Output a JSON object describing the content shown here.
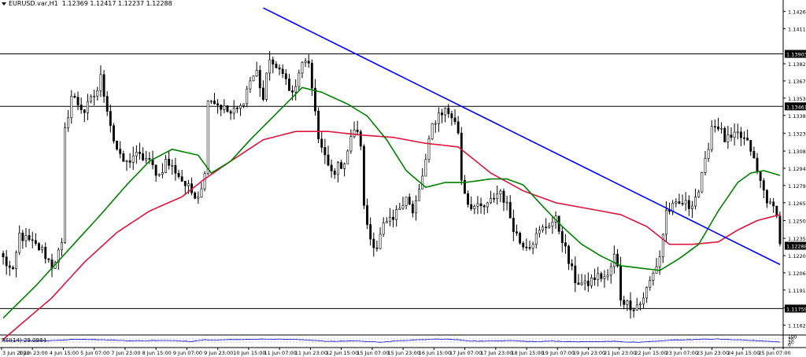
{
  "header": {
    "symbol": "EURUSD.var,H1",
    "ohlc": "1.12369 1.12417 1.12237 1.12288"
  },
  "chart_data": {
    "type": "candlestick",
    "y_ticks": [
      "1.14260",
      "1.14115",
      "1.13820",
      "1.13675",
      "1.13530",
      "1.13385",
      "1.13235",
      "1.13085",
      "1.12940",
      "1.12795",
      "1.12650",
      "1.12500",
      "1.12350",
      "1.12205",
      "1.12060",
      "1.11915",
      "1.11765",
      "1.11620"
    ],
    "y_range": [
      1.1155,
      1.1433
    ],
    "levels": [
      {
        "value": "1.13903",
        "type": "horizontal"
      },
      {
        "value": "1.13461",
        "type": "horizontal"
      },
      {
        "value": "1.11759",
        "type": "horizontal"
      }
    ],
    "current_price": "1.12288",
    "trendline": {
      "color": "#0000ff",
      "from": {
        "candle": 80,
        "price": 1.1429
      },
      "to": {
        "candle": 239,
        "price": 1.1213
      }
    },
    "x_labels": [
      "3 Jun 2020",
      "3 Jun 23:00",
      "4 Jun 15:00",
      "5 Jun 07:00",
      "7 Jun 23:00",
      "8 Jun 15:00",
      "9 Jun 07:00",
      "9 Jun 23:00",
      "10 Jun 15:00",
      "11 Jun 07:00",
      "11 Jun 23:00",
      "12 Jun 15:00",
      "15 Jun 07:00",
      "15 Jun 23:00",
      "16 Jun 15:00",
      "17 Jun 07:00",
      "17 Jun 23:00",
      "18 Jun 15:00",
      "19 Jun 07:00",
      "19 Jun 23:00",
      "21 Jun 23:00",
      "22 Jun 15:00",
      "23 Jun 07:00",
      "23 Jun 23:00",
      "24 Jun 15:00",
      "25 Jun 07:00"
    ],
    "candle_count": 240,
    "anchors": [
      [
        0,
        1.1218
      ],
      [
        3,
        1.1205
      ],
      [
        5,
        1.1238
      ],
      [
        8,
        1.1232
      ],
      [
        12,
        1.1225
      ],
      [
        15,
        1.1212
      ],
      [
        18,
        1.1228
      ],
      [
        19,
        1.1325
      ],
      [
        21,
        1.1355
      ],
      [
        25,
        1.1342
      ],
      [
        29,
        1.136
      ],
      [
        30,
        1.137
      ],
      [
        32,
        1.1345
      ],
      [
        34,
        1.1318
      ],
      [
        36,
        1.1302
      ],
      [
        38,
        1.1298
      ],
      [
        40,
        1.1305
      ],
      [
        44,
        1.1302
      ],
      [
        46,
        1.1295
      ],
      [
        48,
        1.1288
      ],
      [
        50,
        1.13
      ],
      [
        53,
        1.1292
      ],
      [
        56,
        1.128
      ],
      [
        58,
        1.1274
      ],
      [
        60,
        1.1272
      ],
      [
        62,
        1.1288
      ],
      [
        63,
        1.1355
      ],
      [
        66,
        1.1348
      ],
      [
        70,
        1.134
      ],
      [
        73,
        1.1345
      ],
      [
        76,
        1.1368
      ],
      [
        78,
        1.1375
      ],
      [
        80,
        1.1352
      ],
      [
        82,
        1.1388
      ],
      [
        84,
        1.1375
      ],
      [
        86,
        1.1378
      ],
      [
        88,
        1.1358
      ],
      [
        90,
        1.136
      ],
      [
        92,
        1.1385
      ],
      [
        94,
        1.1378
      ],
      [
        96,
        1.1345
      ],
      [
        97,
        1.1318
      ],
      [
        99,
        1.1302
      ],
      [
        101,
        1.129
      ],
      [
        103,
        1.1295
      ],
      [
        105,
        1.13
      ],
      [
        107,
        1.1318
      ],
      [
        108,
        1.1328
      ],
      [
        110,
        1.1315
      ],
      [
        111,
        1.126
      ],
      [
        113,
        1.1235
      ],
      [
        115,
        1.1228
      ],
      [
        117,
        1.1245
      ],
      [
        120,
        1.125
      ],
      [
        122,
        1.1262
      ],
      [
        124,
        1.1272
      ],
      [
        126,
        1.1255
      ],
      [
        128,
        1.1275
      ],
      [
        130,
        1.13
      ],
      [
        132,
        1.133
      ],
      [
        134,
        1.134
      ],
      [
        136,
        1.1343
      ],
      [
        138,
        1.1338
      ],
      [
        140,
        1.1325
      ],
      [
        141,
        1.1285
      ],
      [
        143,
        1.1265
      ],
      [
        146,
        1.126
      ],
      [
        149,
        1.1262
      ],
      [
        151,
        1.127
      ],
      [
        153,
        1.1275
      ],
      [
        155,
        1.1262
      ],
      [
        157,
        1.1245
      ],
      [
        159,
        1.1232
      ],
      [
        162,
        1.123
      ],
      [
        165,
        1.124
      ],
      [
        168,
        1.1248
      ],
      [
        170,
        1.125
      ],
      [
        172,
        1.1235
      ],
      [
        174,
        1.1215
      ],
      [
        176,
        1.12
      ],
      [
        179,
        1.1195
      ],
      [
        182,
        1.1202
      ],
      [
        184,
        1.1203
      ],
      [
        186,
        1.1202
      ],
      [
        188,
        1.122
      ],
      [
        189,
        1.121
      ],
      [
        190,
        1.1185
      ],
      [
        192,
        1.118
      ],
      [
        194,
        1.1178
      ],
      [
        196,
        1.118
      ],
      [
        198,
        1.1192
      ],
      [
        200,
        1.1205
      ],
      [
        202,
        1.122
      ],
      [
        204,
        1.1258
      ],
      [
        207,
        1.1262
      ],
      [
        209,
        1.1265
      ],
      [
        211,
        1.1262
      ],
      [
        214,
        1.1275
      ],
      [
        216,
        1.1298
      ],
      [
        218,
        1.133
      ],
      [
        220,
        1.133
      ],
      [
        222,
        1.1318
      ],
      [
        224,
        1.1318
      ],
      [
        226,
        1.1322
      ],
      [
        228,
        1.1318
      ],
      [
        230,
        1.131
      ],
      [
        232,
        1.129
      ],
      [
        234,
        1.1275
      ],
      [
        236,
        1.1262
      ],
      [
        238,
        1.1258
      ],
      [
        239,
        1.1229
      ]
    ],
    "moving_averages": [
      {
        "color": "#dc143c",
        "points": [
          [
            0,
            1.115
          ],
          [
            15,
            1.1185
          ],
          [
            25,
            1.1215
          ],
          [
            35,
            1.124
          ],
          [
            45,
            1.1258
          ],
          [
            55,
            1.127
          ],
          [
            62,
            1.1285
          ],
          [
            70,
            1.13
          ],
          [
            80,
            1.1318
          ],
          [
            90,
            1.1325
          ],
          [
            100,
            1.1325
          ],
          [
            110,
            1.1322
          ],
          [
            120,
            1.132
          ],
          [
            130,
            1.1315
          ],
          [
            140,
            1.1312
          ],
          [
            150,
            1.129
          ],
          [
            160,
            1.1275
          ],
          [
            170,
            1.1265
          ],
          [
            180,
            1.126
          ],
          [
            190,
            1.1255
          ],
          [
            198,
            1.1245
          ],
          [
            205,
            1.123
          ],
          [
            212,
            1.123
          ],
          [
            220,
            1.1232
          ],
          [
            226,
            1.1242
          ],
          [
            232,
            1.125
          ],
          [
            239,
            1.1255
          ]
        ]
      },
      {
        "color": "#008000",
        "points": [
          [
            0,
            1.1168
          ],
          [
            10,
            1.1195
          ],
          [
            20,
            1.1225
          ],
          [
            30,
            1.1255
          ],
          [
            38,
            1.128
          ],
          [
            45,
            1.13
          ],
          [
            52,
            1.131
          ],
          [
            60,
            1.1305
          ],
          [
            64,
            1.129
          ],
          [
            70,
            1.13
          ],
          [
            76,
            1.1318
          ],
          [
            84,
            1.134
          ],
          [
            92,
            1.1362
          ],
          [
            98,
            1.1358
          ],
          [
            106,
            1.1348
          ],
          [
            112,
            1.1338
          ],
          [
            118,
            1.1318
          ],
          [
            124,
            1.1292
          ],
          [
            130,
            1.1278
          ],
          [
            136,
            1.1282
          ],
          [
            142,
            1.1282
          ],
          [
            150,
            1.1285
          ],
          [
            155,
            1.1285
          ],
          [
            160,
            1.128
          ],
          [
            166,
            1.1262
          ],
          [
            172,
            1.1245
          ],
          [
            178,
            1.123
          ],
          [
            184,
            1.122
          ],
          [
            190,
            1.1212
          ],
          [
            196,
            1.121
          ],
          [
            202,
            1.1208
          ],
          [
            208,
            1.1218
          ],
          [
            214,
            1.123
          ],
          [
            220,
            1.1258
          ],
          [
            226,
            1.1282
          ],
          [
            230,
            1.129
          ],
          [
            234,
            1.1292
          ],
          [
            239,
            1.1288
          ]
        ]
      }
    ],
    "rsi": {
      "label": "RSI(14) 29.0984",
      "ticks": [
        "100",
        "70",
        "30",
        "0"
      ],
      "levels": [
        70,
        30
      ],
      "color": "#0000cd",
      "points": [
        [
          0,
          48
        ],
        [
          6,
          50
        ],
        [
          12,
          42
        ],
        [
          18,
          55
        ],
        [
          22,
          68
        ],
        [
          28,
          62
        ],
        [
          34,
          55
        ],
        [
          40,
          45
        ],
        [
          46,
          50
        ],
        [
          52,
          48
        ],
        [
          58,
          40
        ],
        [
          62,
          60
        ],
        [
          66,
          58
        ],
        [
          72,
          62
        ],
        [
          78,
          66
        ],
        [
          84,
          68
        ],
        [
          90,
          62
        ],
        [
          96,
          52
        ],
        [
          100,
          38
        ],
        [
          104,
          40
        ],
        [
          108,
          48
        ],
        [
          112,
          36
        ],
        [
          116,
          30
        ],
        [
          120,
          40
        ],
        [
          124,
          52
        ],
        [
          128,
          58
        ],
        [
          132,
          66
        ],
        [
          136,
          68
        ],
        [
          140,
          58
        ],
        [
          144,
          44
        ],
        [
          148,
          40
        ],
        [
          152,
          46
        ],
        [
          156,
          52
        ],
        [
          160,
          40
        ],
        [
          164,
          36
        ],
        [
          168,
          44
        ],
        [
          172,
          38
        ],
        [
          176,
          34
        ],
        [
          180,
          32
        ],
        [
          184,
          35
        ],
        [
          188,
          42
        ],
        [
          192,
          30
        ],
        [
          196,
          28
        ],
        [
          200,
          38
        ],
        [
          204,
          50
        ],
        [
          208,
          58
        ],
        [
          212,
          62
        ],
        [
          216,
          66
        ],
        [
          220,
          68
        ],
        [
          224,
          60
        ],
        [
          228,
          58
        ],
        [
          232,
          46
        ],
        [
          236,
          38
        ],
        [
          239,
          29
        ]
      ]
    }
  }
}
